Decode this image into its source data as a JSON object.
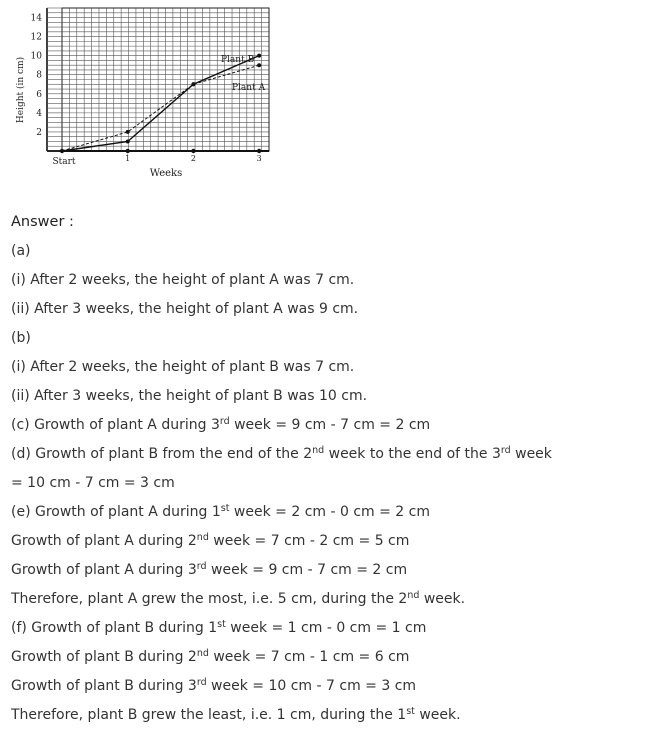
{
  "chart_data": {
    "type": "line",
    "xlabel": "Weeks",
    "ylabel": "Height (in cm)",
    "x_ticks": [
      {
        "x": 0,
        "label": "Start"
      },
      {
        "x": 1,
        "label": "1"
      },
      {
        "x": 2,
        "label": "2"
      },
      {
        "x": 3,
        "label": "3"
      }
    ],
    "y_ticks": [
      2,
      4,
      6,
      8,
      10,
      12,
      14
    ],
    "ylim": [
      0,
      15
    ],
    "xlim": [
      0,
      3.15
    ],
    "grid": true,
    "series": [
      {
        "name": "Plant A",
        "dashed": true,
        "x": [
          0,
          1,
          2,
          3
        ],
        "values": [
          0,
          2,
          7,
          9
        ]
      },
      {
        "name": "Plant B",
        "dashed": false,
        "x": [
          0,
          1,
          2,
          3
        ],
        "values": [
          0,
          1,
          7,
          10
        ]
      }
    ]
  },
  "answer": {
    "title": "Answer :",
    "lines": [
      {
        "segments": [
          {
            "t": "(a)"
          }
        ]
      },
      {
        "segments": [
          {
            "t": "(i) After 2 weeks, the height of plant A was 7 cm."
          }
        ]
      },
      {
        "segments": [
          {
            "t": "(ii) After 3 weeks, the height of plant A was 9 cm."
          }
        ]
      },
      {
        "segments": [
          {
            "t": "(b)"
          }
        ]
      },
      {
        "segments": [
          {
            "t": "(i) After 2 weeks, the height of plant B was 7 cm."
          }
        ]
      },
      {
        "segments": [
          {
            "t": "(ii) After 3 weeks, the height of plant B was 10 cm."
          }
        ]
      },
      {
        "segments": [
          {
            "t": "(c) Growth of plant A during 3"
          },
          {
            "t": "rd",
            "sup": true
          },
          {
            "t": " week = 9 cm - 7 cm = 2 cm"
          }
        ]
      },
      {
        "segments": [
          {
            "t": "(d) Growth of plant B from the end of the 2"
          },
          {
            "t": "nd",
            "sup": true
          },
          {
            "t": " week to the end of the 3"
          },
          {
            "t": "rd",
            "sup": true
          },
          {
            "t": " week"
          }
        ]
      },
      {
        "segments": [
          {
            "t": "= 10 cm - 7 cm = 3 cm"
          }
        ]
      },
      {
        "segments": [
          {
            "t": "(e) Growth of plant A during 1"
          },
          {
            "t": "st",
            "sup": true
          },
          {
            "t": " week = 2 cm - 0 cm = 2 cm"
          }
        ]
      },
      {
        "segments": [
          {
            "t": "Growth of plant A during 2"
          },
          {
            "t": "nd",
            "sup": true
          },
          {
            "t": " week = 7 cm - 2 cm = 5 cm"
          }
        ]
      },
      {
        "segments": [
          {
            "t": "Growth of plant A during 3"
          },
          {
            "t": "rd",
            "sup": true
          },
          {
            "t": " week = 9 cm - 7 cm = 2 cm"
          }
        ]
      },
      {
        "segments": [
          {
            "t": "Therefore, plant A grew the most, i.e. 5 cm, during the 2"
          },
          {
            "t": "nd",
            "sup": true
          },
          {
            "t": " week."
          }
        ]
      },
      {
        "segments": [
          {
            "t": "(f) Growth of plant B during 1"
          },
          {
            "t": "st",
            "sup": true
          },
          {
            "t": " week = 1 cm - 0 cm = 1 cm"
          }
        ]
      },
      {
        "segments": [
          {
            "t": "Growth of plant B during 2"
          },
          {
            "t": "nd",
            "sup": true
          },
          {
            "t": " week = 7 cm - 1 cm = 6 cm"
          }
        ]
      },
      {
        "segments": [
          {
            "t": "Growth of plant B during 3"
          },
          {
            "t": "rd",
            "sup": true
          },
          {
            "t": " week = 10 cm - 7 cm = 3 cm"
          }
        ]
      },
      {
        "segments": [
          {
            "t": "Therefore, plant B grew the least, i.e. 1 cm, during the 1"
          },
          {
            "t": "st",
            "sup": true
          },
          {
            "t": " week."
          }
        ]
      }
    ]
  }
}
